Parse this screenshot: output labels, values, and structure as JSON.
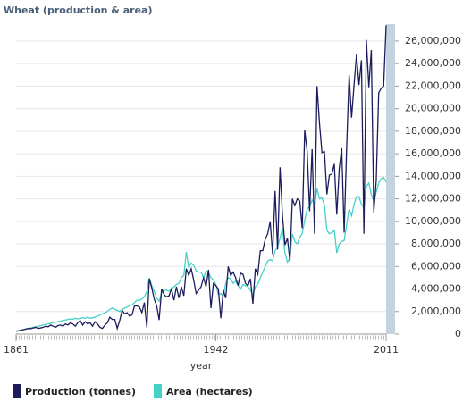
{
  "chart_data": {
    "type": "line",
    "title": "Wheat (production & area)",
    "x_label": "year",
    "x": [
      1861,
      1862,
      1863,
      1864,
      1865,
      1866,
      1867,
      1868,
      1869,
      1870,
      1871,
      1872,
      1873,
      1874,
      1875,
      1876,
      1877,
      1878,
      1879,
      1880,
      1881,
      1882,
      1883,
      1884,
      1885,
      1886,
      1887,
      1888,
      1889,
      1890,
      1891,
      1892,
      1893,
      1894,
      1895,
      1896,
      1897,
      1898,
      1899,
      1900,
      1901,
      1902,
      1903,
      1904,
      1905,
      1906,
      1907,
      1908,
      1909,
      1910,
      1911,
      1912,
      1913,
      1914,
      1915,
      1916,
      1917,
      1918,
      1919,
      1920,
      1921,
      1922,
      1923,
      1924,
      1925,
      1926,
      1927,
      1928,
      1929,
      1930,
      1931,
      1932,
      1933,
      1934,
      1935,
      1936,
      1937,
      1938,
      1939,
      1940,
      1941,
      1942,
      1943,
      1944,
      1945,
      1946,
      1947,
      1948,
      1949,
      1950,
      1951,
      1952,
      1953,
      1954,
      1955,
      1956,
      1957,
      1958,
      1959,
      1960,
      1961,
      1962,
      1963,
      1964,
      1965,
      1966,
      1967,
      1968,
      1969,
      1970,
      1971,
      1972,
      1973,
      1974,
      1975,
      1976,
      1977,
      1978,
      1979,
      1980,
      1981,
      1982,
      1983,
      1984,
      1985,
      1986,
      1987,
      1988,
      1989,
      1990,
      1991,
      1992,
      1993,
      1994,
      1995,
      1996,
      1997,
      1998,
      1999,
      2000,
      2001,
      2002,
      2003,
      2004,
      2005,
      2006,
      2007,
      2008,
      2009,
      2010,
      2011
    ],
    "series": [
      {
        "name": "Production (tonnes)",
        "color": "#1c1c5c",
        "values": [
          250000,
          300000,
          350000,
          400000,
          450000,
          500000,
          480000,
          550000,
          600000,
          500000,
          550000,
          600000,
          700000,
          650000,
          800000,
          700000,
          600000,
          750000,
          800000,
          700000,
          900000,
          800000,
          1000000,
          900000,
          700000,
          1000000,
          1200000,
          800000,
          1100000,
          900000,
          1000000,
          700000,
          1100000,
          900000,
          600000,
          500000,
          800000,
          1000000,
          1500000,
          1300000,
          1300000,
          500000,
          1200000,
          2100000,
          1800000,
          1900000,
          1600000,
          1700000,
          2500000,
          2500000,
          2400000,
          1900000,
          2800000,
          600000,
          4900000,
          4100000,
          3100000,
          2500000,
          1250000,
          4000000,
          3500000,
          3300000,
          3400000,
          4000000,
          3000000,
          4200000,
          3200000,
          4200000,
          3400000,
          5800000,
          5200000,
          5800000,
          4800000,
          3600000,
          3900000,
          4200000,
          5000000,
          4200000,
          5700000,
          2300000,
          4500000,
          4300000,
          4000000,
          1400000,
          3900000,
          3200000,
          6000000,
          5200000,
          5500000,
          5000000,
          4300000,
          5400000,
          5300000,
          4500000,
          4300000,
          4900000,
          2700000,
          5800000,
          5300000,
          7400000,
          7400000,
          8400000,
          8900000,
          10000000,
          7100000,
          12700000,
          7500000,
          14800000,
          10500000,
          7900000,
          8500000,
          6500000,
          12000000,
          11400000,
          12000000,
          11800000,
          9400000,
          18100000,
          16200000,
          10900000,
          16400000,
          8900000,
          22000000,
          18700000,
          16100000,
          16200000,
          12400000,
          14100000,
          14200000,
          15100000,
          10600000,
          14700000,
          16500000,
          9000000,
          16500000,
          23000000,
          19200000,
          22100000,
          24800000,
          22100000,
          24300000,
          8900000,
          26100000,
          21900000,
          25200000,
          10800000,
          13600000,
          21400000,
          21800000,
          22000000,
          27400000
        ]
      },
      {
        "name": "Area (hectares)",
        "color": "#44d1c6",
        "values": [
          280000,
          300000,
          350000,
          400000,
          450000,
          500000,
          550000,
          600000,
          650000,
          700000,
          750000,
          800000,
          850000,
          900000,
          950000,
          1000000,
          1050000,
          1100000,
          1150000,
          1200000,
          1250000,
          1300000,
          1350000,
          1300000,
          1400000,
          1350000,
          1400000,
          1450000,
          1400000,
          1500000,
          1400000,
          1450000,
          1500000,
          1600000,
          1700000,
          1800000,
          1900000,
          2000000,
          2200000,
          2300000,
          2200000,
          2100000,
          2000000,
          2200000,
          2300000,
          2400000,
          2500000,
          2600000,
          2800000,
          3000000,
          3000000,
          3100000,
          3300000,
          3800000,
          5000000,
          4300000,
          3800000,
          3200000,
          2900000,
          3700000,
          3900000,
          3900000,
          3800000,
          4000000,
          4200000,
          4400000,
          4500000,
          5000000,
          5200000,
          7300000,
          5900000,
          6300000,
          6100000,
          5600000,
          5500000,
          5500000,
          5000000,
          5600000,
          5500000,
          5000000,
          4800000,
          4400000,
          3500000,
          3600000,
          3400000,
          4500000,
          5000000,
          4900000,
          4500000,
          4700000,
          4300000,
          4000000,
          4400000,
          4300000,
          4200000,
          3900000,
          3400000,
          4200000,
          4400000,
          5000000,
          5500000,
          6000000,
          6500000,
          6600000,
          6500000,
          7400000,
          7700000,
          8500000,
          9400000,
          7200000,
          6400000,
          6700000,
          8900000,
          8200000,
          8000000,
          8600000,
          8900000,
          10100000,
          11100000,
          11300000,
          11900000,
          11500000,
          12900000,
          12000000,
          12100000,
          11400000,
          9200000,
          8900000,
          9000000,
          9200000,
          7200000,
          8000000,
          8200000,
          8300000,
          9700000,
          11100000,
          10500000,
          11500000,
          12200000,
          12200000,
          11500000,
          11200000,
          13100000,
          13400000,
          12400000,
          11800000,
          12600000,
          13400000,
          13800000,
          13900000,
          13500000
        ]
      }
    ],
    "xlim": [
      1861,
      2011
    ],
    "xticks": [
      1861,
      1942,
      2011
    ],
    "ylim": [
      0,
      27500000
    ],
    "yticks": [
      0,
      {
        "value": 2000000,
        "label": "2,000,000"
      },
      {
        "value": 4000000,
        "label": "4,000,000"
      },
      {
        "value": 6000000,
        "label": "6,000,000"
      },
      {
        "value": 8000000,
        "label": "8,000,000"
      },
      {
        "value": 10000000,
        "label": "10,000,000"
      },
      {
        "value": 12000000,
        "label": "12,000,000"
      },
      {
        "value": 14000000,
        "label": "14,000,000"
      },
      {
        "value": 16000000,
        "label": "16,000,000"
      },
      {
        "value": 18000000,
        "label": "18,000,000"
      },
      {
        "value": 20000000,
        "label": "20,000,000"
      },
      {
        "value": 22000000,
        "label": "22,000,000"
      },
      {
        "value": 24000000,
        "label": "24,000,000"
      },
      {
        "value": 26000000,
        "label": "26,000,000"
      }
    ],
    "grid": true
  }
}
